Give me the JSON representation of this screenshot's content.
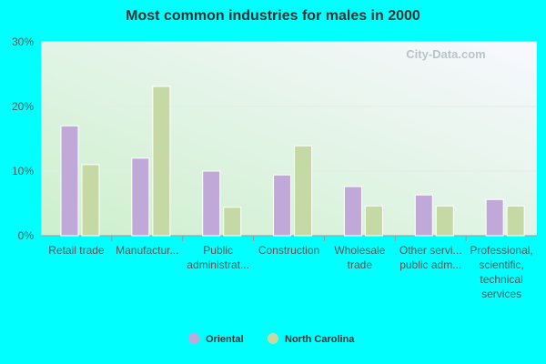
{
  "chart_data": {
    "type": "bar",
    "title": "Most common industries for males in 2000",
    "watermark": "City-Data.com",
    "categories": [
      [
        "Retail trade"
      ],
      [
        "Manufactur..."
      ],
      [
        "Public",
        "administrat..."
      ],
      [
        "Construction"
      ],
      [
        "Wholesale",
        "trade"
      ],
      [
        "Other servi...",
        "public adm..."
      ],
      [
        "Professional,",
        "scientific,",
        "technical",
        "services"
      ]
    ],
    "series": [
      {
        "name": "Oriental",
        "color": "#c0a8d8",
        "values": [
          17.0,
          12.0,
          10.0,
          9.4,
          7.6,
          6.3,
          5.6
        ]
      },
      {
        "name": "North Carolina",
        "color": "#c5d9a5",
        "values": [
          11.0,
          23.1,
          4.4,
          13.9,
          4.6,
          4.6,
          4.6
        ]
      }
    ],
    "ylim": [
      0,
      30
    ],
    "yticks": [
      {
        "value": 0,
        "label": "0%"
      },
      {
        "value": 10,
        "label": "10%"
      },
      {
        "value": 20,
        "label": "20%"
      },
      {
        "value": 30,
        "label": "30%"
      }
    ],
    "grid": true,
    "legend": "bottom"
  }
}
